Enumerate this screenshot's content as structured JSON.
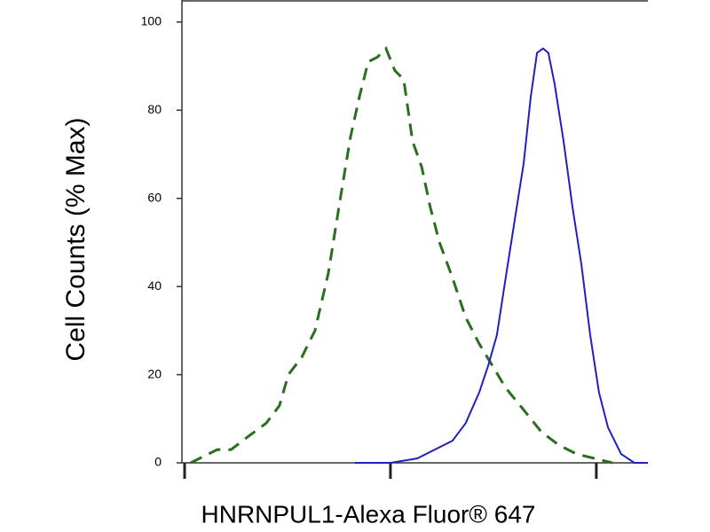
{
  "chart_data": {
    "type": "line",
    "x_label": "HNRNPUL1-Alexa Fluor® 647",
    "y_label": "Cell Counts (% Max)",
    "xscale": "log",
    "xlim": [
      1,
      178
    ],
    "xticks": [
      1,
      10,
      100
    ],
    "ylim": [
      0,
      105
    ],
    "yticks": [
      0,
      20,
      40,
      60,
      80,
      100
    ],
    "series": [
      {
        "color": "#2a6e1e",
        "dashed": true,
        "x": [
          1.07,
          1.44,
          1.68,
          2.04,
          2.49,
          2.89,
          3.19,
          3.71,
          4.3,
          4.99,
          5.8,
          6.4,
          7.06,
          7.8,
          8.62,
          9.51,
          10.5,
          11.6,
          12.8,
          14.2,
          15.6,
          17.3,
          20.0,
          23.2,
          27.0,
          31.3,
          36.3,
          44.4,
          54.1,
          65.9,
          80.4,
          98.0,
          119.6
        ],
        "y": [
          0,
          3,
          3,
          6,
          9,
          13,
          20,
          24,
          30,
          43,
          62,
          74,
          83,
          91,
          92,
          94,
          89,
          87,
          73,
          67,
          58,
          50,
          42,
          33,
          27,
          22,
          17,
          12,
          7,
          4,
          2,
          1,
          0
        ]
      },
      {
        "color": "#2020c0",
        "dashed": false,
        "x": [
          6.73,
          10.0,
          13.5,
          16.4,
          20.0,
          23.2,
          27.0,
          29.8,
          32.9,
          36.3,
          40.1,
          44.4,
          48.0,
          51.5,
          55.1,
          58.5,
          62.7,
          69.3,
          76.6,
          84.6,
          93.4,
          103,
          114,
          132,
          153,
          178
        ],
        "y": [
          0,
          0,
          1,
          3,
          5,
          9,
          16,
          22,
          29,
          42,
          55,
          68,
          83,
          93,
          94,
          93,
          86,
          73,
          58,
          45,
          29,
          16,
          8,
          2,
          0,
          0
        ]
      }
    ]
  }
}
